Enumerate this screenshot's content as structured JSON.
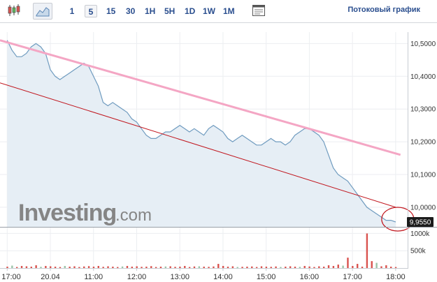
{
  "toolbar": {
    "chart_type_icons": [
      "candlestick-icon",
      "area-chart-icon"
    ],
    "intervals": [
      "1",
      "5",
      "15",
      "30",
      "1H",
      "5H",
      "1D",
      "1W",
      "1M"
    ],
    "active_interval": "5",
    "settings_icon": "indicator-panel-icon",
    "streaming_label": "Потоковый график"
  },
  "watermark": {
    "brand": "Investing",
    "suffix": ".com"
  },
  "colors": {
    "line": "#6f9bbf",
    "area": "#e6eef5",
    "upper_trendline": "#f4a6c4",
    "lower_trendline": "#c0141c",
    "circle": "#c0141c",
    "volume_bar": "#d9534f",
    "volume_bar_up": "#9bc4a8",
    "price_tag_bg": "#1b1b1b"
  },
  "chart_data": {
    "type": "line",
    "y_ticks": [
      "10,5000",
      "10,4000",
      "10,3000",
      "10,2000",
      "10,1000",
      "10,0000"
    ],
    "y_tick_values": [
      10.5,
      10.4,
      10.3,
      10.2,
      10.1,
      10.0
    ],
    "ylim": [
      9.94,
      10.535
    ],
    "x_ticks": [
      "17:00",
      "20.04",
      "11:00",
      "12:00",
      "13:00",
      "14:00",
      "15:00",
      "16:00",
      "17:00",
      "18:00"
    ],
    "x_tick_positions": [
      0,
      9,
      18,
      27,
      36,
      45,
      54,
      63,
      72,
      81
    ],
    "xlim": [
      -1.5,
      83.5
    ],
    "current_price": "9,9550",
    "current_price_value": 9.955,
    "price": [
      10.51,
      10.48,
      10.46,
      10.46,
      10.47,
      10.49,
      10.5,
      10.49,
      10.47,
      10.42,
      10.4,
      10.39,
      10.4,
      10.41,
      10.42,
      10.43,
      10.44,
      10.43,
      10.4,
      10.37,
      10.32,
      10.31,
      10.32,
      10.31,
      10.3,
      10.29,
      10.27,
      10.26,
      10.24,
      10.22,
      10.21,
      10.21,
      10.22,
      10.23,
      10.23,
      10.24,
      10.25,
      10.24,
      10.23,
      10.24,
      10.23,
      10.22,
      10.24,
      10.25,
      10.24,
      10.23,
      10.21,
      10.2,
      10.21,
      10.22,
      10.21,
      10.2,
      10.19,
      10.19,
      10.2,
      10.21,
      10.2,
      10.2,
      10.19,
      10.2,
      10.22,
      10.23,
      10.24,
      10.24,
      10.23,
      10.22,
      10.2,
      10.16,
      10.12,
      10.1,
      10.09,
      10.08,
      10.06,
      10.04,
      10.02,
      10.0,
      9.99,
      9.98,
      9.97,
      9.96,
      9.96,
      9.955
    ],
    "trendline_upper": {
      "from": [
        -1.5,
        10.51
      ],
      "to": [
        82,
        10.16
      ]
    },
    "trendline_lower": {
      "from": [
        -1.5,
        10.38
      ],
      "to": [
        81,
        10.0
      ]
    },
    "volume_ticks": [
      "1000k",
      "500k"
    ],
    "volume_tick_values": [
      1000,
      500
    ],
    "volume_max": 1150,
    "volume": [
      40,
      70,
      30,
      60,
      50,
      40,
      80,
      35,
      60,
      50,
      40,
      30,
      60,
      40,
      50,
      30,
      45,
      55,
      40,
      60,
      35,
      50,
      40,
      30,
      45,
      60,
      40,
      50,
      35,
      40,
      55,
      30,
      40,
      45,
      50,
      35,
      40,
      60,
      30,
      45,
      50,
      40,
      35,
      45,
      120,
      60,
      40,
      50,
      30,
      35,
      40,
      45,
      30,
      50,
      40,
      35,
      45,
      30,
      40,
      50,
      40,
      35,
      60,
      45,
      30,
      50,
      40,
      80,
      60,
      100,
      70,
      300,
      60,
      120,
      40,
      1000,
      200,
      150,
      50,
      80,
      40,
      30
    ],
    "volume_up": [
      1,
      7,
      12,
      24,
      33,
      40,
      48,
      57,
      61,
      70,
      77
    ]
  }
}
